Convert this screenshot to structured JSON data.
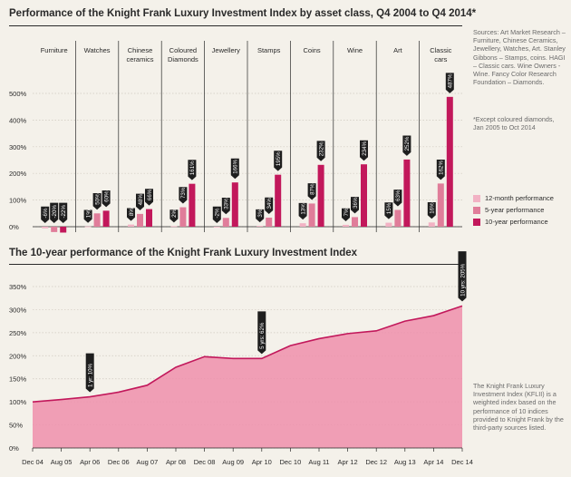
{
  "header": {
    "title1": "Performance of the Knight Frank Luxury Investment Index by asset class, Q4 2004 to Q4 2014*",
    "title2": "The 10-year performance of the Knight Frank Luxury Investment Index"
  },
  "notes": {
    "sources": "Sources: Art Market Research – Furniture, Chinese Ceramics, Jewellery, Watches, Art. Stanley Gibbons – Stamps, coins. HAGI – Classic cars. Wine Owners - Wine. Fancy Color Research Foundation – Diamonds.",
    "footnote": "*Except coloured diamonds, Jan 2005 to Oct 2014",
    "kfli": "The Knight Frank Luxury Investment Index (KFLII) is a weighted index based on the performance of 10 indices provided to Knight Frank by the third-party sources listed."
  },
  "colors": {
    "twelve_month": "#f2b2c4",
    "five_year": "#e07d9a",
    "ten_year": "#c2185b",
    "area_fill": "#ef8fac",
    "area_line": "#c2185b",
    "text": "#2a2a2a"
  },
  "chart_data": [
    {
      "type": "bar",
      "categories": [
        "Furniture",
        "Watches",
        "Chinese ceramics",
        "Coloured Diamonds",
        "Jewellery",
        "Stamps",
        "Coins",
        "Wine",
        "Art",
        "Classic cars"
      ],
      "category_display": [
        "Furniture",
        "Watches",
        "Chinese\nceramics",
        "Coloured\nDiamonds",
        "Jewellery",
        "Stamps",
        "Coins",
        "Wine",
        "Art",
        "Classic\ncars"
      ],
      "series": [
        {
          "name": "12-month performance",
          "values": [
            -6,
            1,
            8,
            2,
            -2,
            3,
            13,
            7,
            15,
            16
          ]
        },
        {
          "name": "5-year performance",
          "values": [
            -20,
            50,
            48,
            73,
            33,
            34,
            87,
            36,
            63,
            162
          ]
        },
        {
          "name": "10-year performance",
          "values": [
            -22,
            60,
            66,
            161,
            166,
            195,
            232,
            234,
            252,
            487
          ]
        }
      ],
      "labels": [
        [
          "-6%",
          "-20%",
          "-22%"
        ],
        [
          "1%",
          "50%",
          "60%"
        ],
        [
          "8%",
          "48%",
          "66%"
        ],
        [
          "2%",
          "73%",
          "161%"
        ],
        [
          "-2%",
          "33%",
          "166%"
        ],
        [
          "3%",
          "34%",
          "195%"
        ],
        [
          "13%",
          "87%",
          "232%"
        ],
        [
          "7%",
          "36%",
          "234%"
        ],
        [
          "15%",
          "63%",
          "252%"
        ],
        [
          "16%",
          "162%",
          "487%"
        ]
      ],
      "ylim": [
        0,
        500
      ],
      "yticks": [
        0,
        100,
        200,
        300,
        400,
        500
      ],
      "ytick_labels": [
        "0%",
        "100%",
        "200%",
        "300%",
        "400%",
        "500%"
      ],
      "legend_position": "right"
    },
    {
      "type": "area",
      "x": [
        "Dec 04",
        "Aug 05",
        "Apr 06",
        "Dec 06",
        "Aug 07",
        "Apr 08",
        "Dec 08",
        "Aug 09",
        "Apr 10",
        "Dec 10",
        "Aug 11",
        "Apr 12",
        "Dec 12",
        "Aug 13",
        "Apr 14",
        "Dec 14"
      ],
      "values": [
        100,
        105,
        111,
        121,
        136,
        175,
        198,
        194,
        194,
        222,
        237,
        248,
        254,
        275,
        287,
        308
      ],
      "ylim": [
        0,
        350
      ],
      "yticks": [
        0,
        50,
        100,
        150,
        200,
        250,
        300,
        350
      ],
      "ytick_labels": [
        "0%",
        "50%",
        "100%",
        "150%",
        "200%",
        "250%",
        "300%",
        "350%"
      ],
      "annotations": [
        {
          "x": "Apr 06",
          "value": 111,
          "text": "1 yr: 10%"
        },
        {
          "x": "Apr 10",
          "value": 194,
          "text": "5 yrs: 62%"
        },
        {
          "x": "Dec 14",
          "value": 308,
          "text": "10 yrs: 205%"
        }
      ]
    }
  ]
}
